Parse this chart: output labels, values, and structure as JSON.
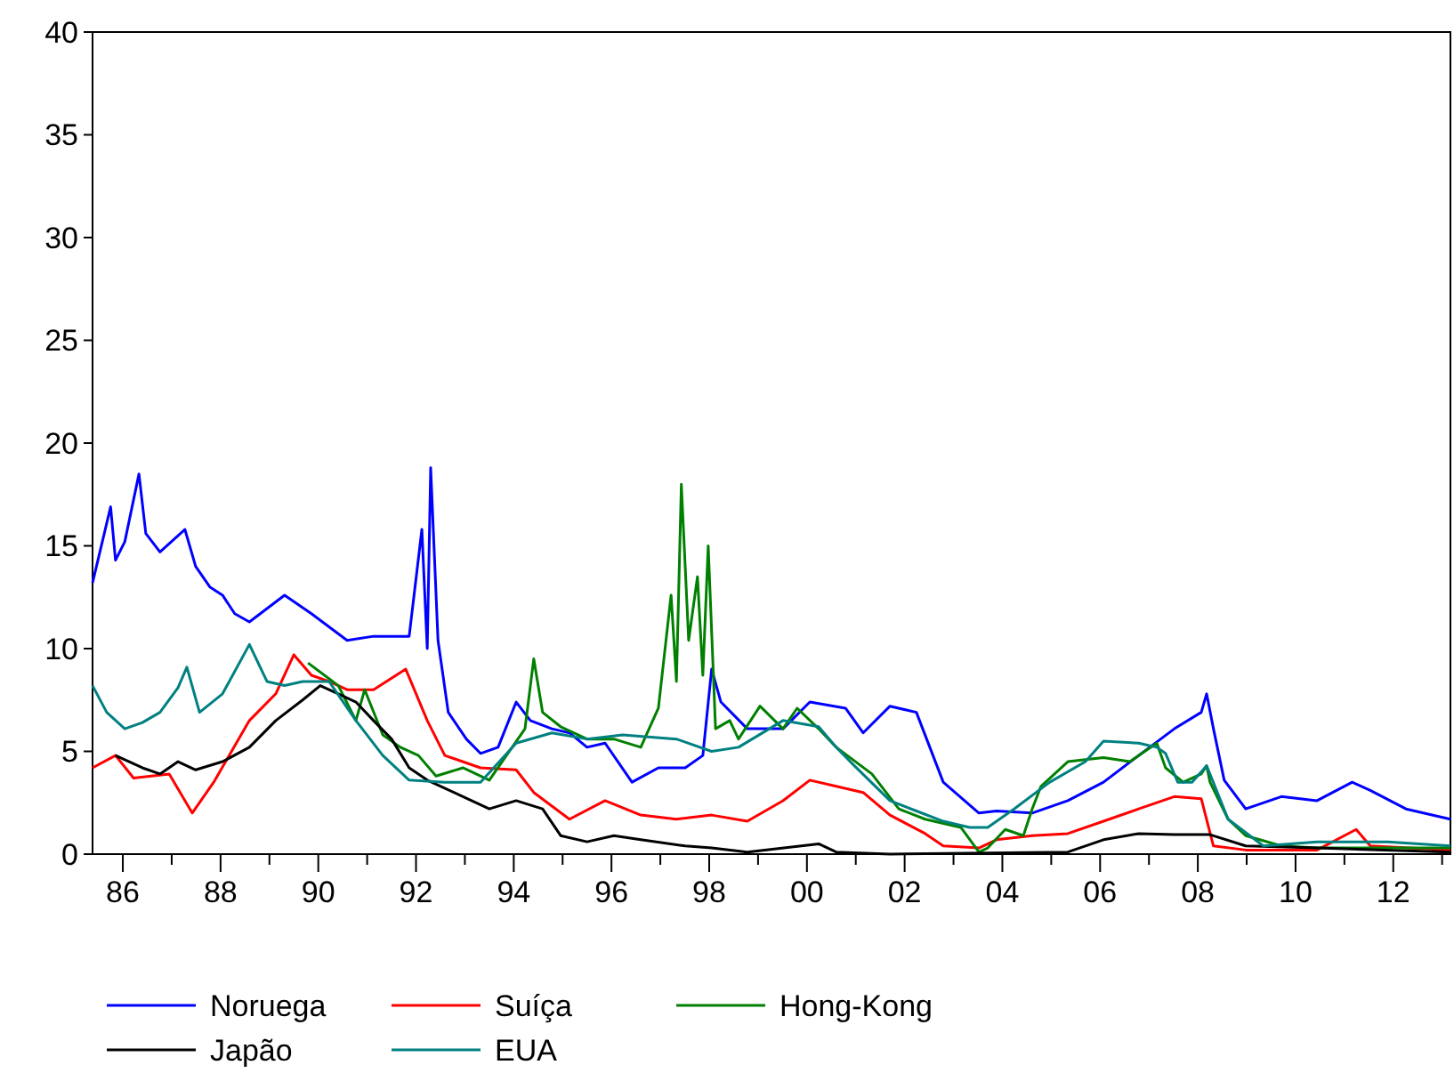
{
  "chart_data": {
    "type": "line",
    "xlim": [
      1985.38,
      2013.17
    ],
    "ylim": [
      0,
      40
    ],
    "xticks": [
      {
        "value": 1986,
        "label": "86"
      },
      {
        "value": 1987,
        "label": null
      },
      {
        "value": 1988,
        "label": "88"
      },
      {
        "value": 1989,
        "label": null
      },
      {
        "value": 1990,
        "label": "90"
      },
      {
        "value": 1991,
        "label": null
      },
      {
        "value": 1992,
        "label": "92"
      },
      {
        "value": 1993,
        "label": null
      },
      {
        "value": 1994,
        "label": "94"
      },
      {
        "value": 1995,
        "label": null
      },
      {
        "value": 1996,
        "label": "96"
      },
      {
        "value": 1997,
        "label": null
      },
      {
        "value": 1998,
        "label": "98"
      },
      {
        "value": 1999,
        "label": null
      },
      {
        "value": 2000,
        "label": "00"
      },
      {
        "value": 2001,
        "label": null
      },
      {
        "value": 2002,
        "label": "02"
      },
      {
        "value": 2003,
        "label": null
      },
      {
        "value": 2004,
        "label": "04"
      },
      {
        "value": 2005,
        "label": null
      },
      {
        "value": 2006,
        "label": "06"
      },
      {
        "value": 2007,
        "label": null
      },
      {
        "value": 2008,
        "label": "08"
      },
      {
        "value": 2009,
        "label": null
      },
      {
        "value": 2010,
        "label": "10"
      },
      {
        "value": 2011,
        "label": null
      },
      {
        "value": 2012,
        "label": "12"
      },
      {
        "value": 2013,
        "label": null
      }
    ],
    "yticks": [
      0,
      5,
      10,
      15,
      20,
      25,
      30,
      35,
      40
    ],
    "grid": false,
    "legend": "bottom",
    "line_style": "solid",
    "marker": "none",
    "series": [
      {
        "name": "Noruega",
        "color": "#0000ff",
        "x": [
          1985.38,
          1985.75,
          1985.85,
          1986.04,
          1986.33,
          1986.47,
          1986.76,
          1987.27,
          1987.49,
          1987.78,
          1988.04,
          1988.29,
          1988.59,
          1989.31,
          1989.86,
          1990.59,
          1991.13,
          1991.86,
          1992.12,
          1992.23,
          1992.3,
          1992.45,
          1992.66,
          1993.03,
          1993.32,
          1993.68,
          1994.05,
          1994.34,
          1994.78,
          1995.14,
          1995.5,
          1995.87,
          1996.42,
          1996.96,
          1997.51,
          1997.87,
          1998.05,
          1998.24,
          1998.78,
          1999.51,
          2000.06,
          2000.79,
          2001.15,
          2001.7,
          2002.24,
          2002.79,
          2003.52,
          2003.88,
          2004.61,
          2005.34,
          2006.07,
          2006.79,
          2007.52,
          2008.07,
          2008.18,
          2008.32,
          2008.54,
          2008.98,
          2009.71,
          2010.44,
          2011.16,
          2011.53,
          2012.26,
          2013.17
        ],
        "values": [
          13.2,
          16.9,
          14.3,
          15.2,
          18.5,
          15.6,
          14.7,
          15.8,
          14,
          13,
          12.6,
          11.7,
          11.3,
          12.6,
          11.7,
          10.4,
          10.6,
          10.6,
          15.8,
          10,
          18.8,
          10.4,
          6.9,
          5.6,
          4.9,
          5.2,
          7.4,
          6.5,
          6.1,
          5.9,
          5.2,
          5.4,
          3.5,
          4.2,
          4.2,
          4.8,
          9,
          7.4,
          6.1,
          6.1,
          7.4,
          7.1,
          5.9,
          7.2,
          6.9,
          3.5,
          2,
          2.1,
          2,
          2.6,
          3.5,
          4.8,
          6.1,
          6.9,
          7.8,
          6.1,
          3.6,
          2.2,
          2.8,
          2.6,
          3.5,
          3.1,
          2.2,
          1.7
        ]
      },
      {
        "name": "Suíça",
        "color": "#ff0000",
        "x": [
          1985.38,
          1985.85,
          1986.22,
          1986.95,
          1987.42,
          1987.86,
          1988.59,
          1989.13,
          1989.5,
          1989.86,
          1990.22,
          1990.59,
          1991.13,
          1991.79,
          1992.23,
          1992.59,
          1993.32,
          1994.05,
          1994.41,
          1995.14,
          1995.87,
          1996.6,
          1997.33,
          1998.05,
          1998.78,
          1999.51,
          2000.06,
          2000.6,
          2001.15,
          2001.7,
          2002.42,
          2002.79,
          2003.52,
          2003.88,
          2004.61,
          2005.34,
          2006.07,
          2006.79,
          2007.52,
          2008.07,
          2008.32,
          2008.98,
          2010.44,
          2011.24,
          2011.53,
          2013.17
        ],
        "values": [
          4.2,
          4.8,
          3.7,
          3.9,
          2,
          3.5,
          6.5,
          7.8,
          9.7,
          8.7,
          8.4,
          8,
          8,
          9,
          6.5,
          4.8,
          4.2,
          4.1,
          3,
          1.7,
          2.6,
          1.9,
          1.7,
          1.9,
          1.6,
          2.6,
          3.6,
          3.3,
          3,
          1.9,
          1,
          0.4,
          0.3,
          0.7,
          0.9,
          1,
          1.6,
          2.2,
          2.8,
          2.7,
          0.4,
          0.2,
          0.2,
          1.2,
          0.4,
          0.2
        ]
      },
      {
        "name": "Hong-Kong",
        "color": "#008000",
        "x": [
          1989.79,
          1990.41,
          1990.77,
          1990.95,
          1991.32,
          1991.68,
          1992.05,
          1992.41,
          1992.96,
          1993.5,
          1994.23,
          1994.41,
          1994.59,
          1994.96,
          1995.5,
          1996.05,
          1996.6,
          1996.96,
          1997.22,
          1997.33,
          1997.43,
          1997.58,
          1997.76,
          1997.87,
          1997.98,
          1998.13,
          1998.42,
          1998.6,
          1999.04,
          1999.51,
          1999.8,
          2000.24,
          2000.6,
          2001.33,
          2001.88,
          2002.42,
          2003.15,
          2003.52,
          2003.7,
          2004.06,
          2004.43,
          2004.61,
          2004.79,
          2005.34,
          2006.07,
          2006.61,
          2007.16,
          2007.34,
          2007.7,
          2008.07,
          2008.18,
          2008.25,
          2008.62,
          2008.98,
          2009.71,
          2010.44,
          2011.89,
          2013.17
        ],
        "values": [
          9.3,
          8.2,
          6.5,
          8,
          5.8,
          5.2,
          4.8,
          3.8,
          4.2,
          3.6,
          6.1,
          9.5,
          6.9,
          6.2,
          5.6,
          5.6,
          5.2,
          7.1,
          12.6,
          8.4,
          18,
          10.4,
          13.5,
          8.7,
          15,
          6.1,
          6.5,
          5.6,
          7.2,
          6.1,
          7.1,
          6.1,
          5.2,
          3.9,
          2.2,
          1.7,
          1.3,
          0.1,
          0.3,
          1.2,
          0.9,
          2.2,
          3.3,
          4.5,
          4.7,
          4.5,
          5.4,
          4.2,
          3.5,
          3.9,
          4.3,
          3.5,
          1.7,
          0.9,
          0.4,
          0.3,
          0.3,
          0.3
        ]
      },
      {
        "name": "Japão",
        "color": "#000000",
        "x": [
          1985.85,
          1986.4,
          1986.76,
          1987.13,
          1987.49,
          1988.04,
          1988.59,
          1989.13,
          1989.68,
          1990.04,
          1990.41,
          1990.77,
          1991.13,
          1991.5,
          1991.86,
          1992.23,
          1992.96,
          1993.5,
          1994.05,
          1994.59,
          1994.96,
          1995.5,
          1996.05,
          1996.6,
          1997.51,
          1998.05,
          1998.78,
          2000.24,
          2000.6,
          2001.7,
          2005.34,
          2006.07,
          2006.79,
          2007.52,
          2008.25,
          2008.98,
          2010.44,
          2013.17
        ],
        "values": [
          4.8,
          4.2,
          3.9,
          4.5,
          4.1,
          4.5,
          5.2,
          6.5,
          7.5,
          8.2,
          7.8,
          7.4,
          6.5,
          5.6,
          4.2,
          3.6,
          2.8,
          2.2,
          2.6,
          2.2,
          0.9,
          0.6,
          0.9,
          0.7,
          0.4,
          0.3,
          0.1,
          0.5,
          0.1,
          0,
          0.1,
          0.7,
          1,
          0.95,
          0.95,
          0.4,
          0.3,
          0.1
        ]
      },
      {
        "name": "EUA",
        "color": "#008080",
        "x": [
          1985.38,
          1985.67,
          1986.04,
          1986.4,
          1986.76,
          1987.13,
          1987.31,
          1987.57,
          1988.04,
          1988.59,
          1988.95,
          1989.31,
          1989.68,
          1990.22,
          1990.77,
          1991.32,
          1991.86,
          1992.59,
          1993.32,
          1994.05,
          1994.78,
          1995.5,
          1996.23,
          1997.33,
          1998.05,
          1998.6,
          1999.51,
          2000.24,
          2000.6,
          2000.97,
          2001.7,
          2002.24,
          2002.79,
          2003.33,
          2003.7,
          2004.24,
          2004.97,
          2005.7,
          2006.07,
          2006.79,
          2007.16,
          2007.34,
          2007.59,
          2007.88,
          2008.18,
          2008.62,
          2009.34,
          2010.44,
          2011.89,
          2013.17
        ],
        "values": [
          8.2,
          6.9,
          6.1,
          6.4,
          6.9,
          8.1,
          9.1,
          6.9,
          7.8,
          10.2,
          8.4,
          8.2,
          8.4,
          8.4,
          6.5,
          4.8,
          3.6,
          3.5,
          3.5,
          5.4,
          5.9,
          5.6,
          5.8,
          5.6,
          5,
          5.2,
          6.5,
          6.2,
          5.2,
          4.3,
          2.6,
          2.1,
          1.6,
          1.3,
          1.3,
          2.2,
          3.5,
          4.5,
          5.5,
          5.4,
          5.2,
          4.9,
          3.5,
          3.5,
          4.3,
          1.7,
          0.4,
          0.6,
          0.6,
          0.4
        ]
      }
    ]
  }
}
